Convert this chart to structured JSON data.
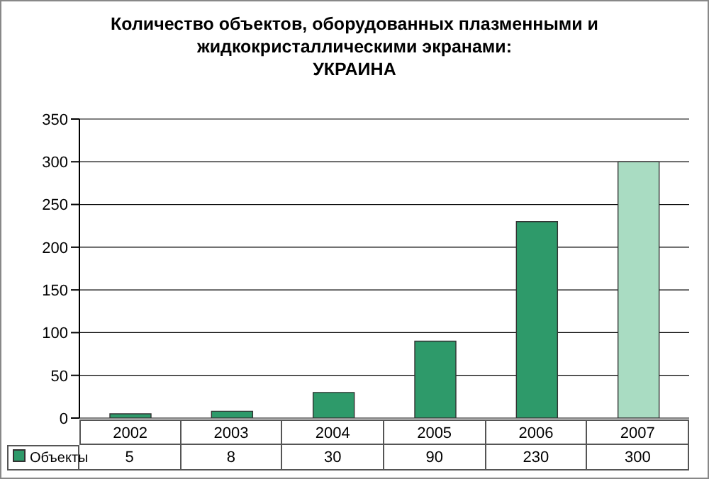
{
  "chart_data": {
    "type": "bar",
    "title": "Количество объектов, оборудованных плазменными и жидкокристаллическими экранами:\nУКРАИНА",
    "categories": [
      "2002",
      "2003",
      "2004",
      "2005",
      "2006",
      "2007"
    ],
    "series": [
      {
        "name": "Объекты",
        "color": "#2e9a6a",
        "colors": [
          "#2e9a6a",
          "#2e9a6a",
          "#2e9a6a",
          "#2e9a6a",
          "#2e9a6a",
          "#a9dcc2"
        ],
        "values": [
          5,
          8,
          30,
          90,
          230,
          300
        ]
      }
    ],
    "ylim": [
      0,
      350
    ],
    "yticks": [
      0,
      50,
      100,
      150,
      200,
      250,
      300,
      350
    ],
    "grid": "y",
    "legend": "bottom",
    "data_labels": true
  }
}
